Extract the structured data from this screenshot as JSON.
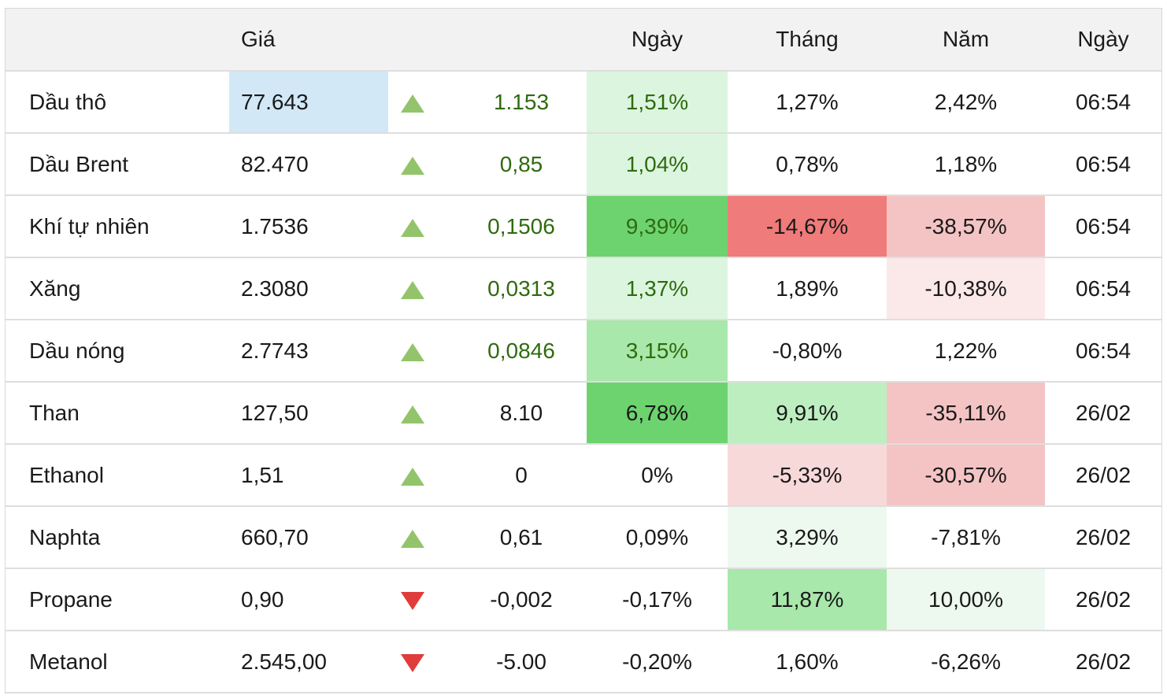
{
  "header": {
    "name": "",
    "price": "Giá",
    "arrow": "",
    "change": "",
    "day": "Ngày",
    "month": "Tháng",
    "year": "Năm",
    "time": "Ngày"
  },
  "colors": {
    "up_arrow": "#93c46b",
    "down_arrow": "#e03c3c",
    "positive_text": "#2f6b0f",
    "price_highlight": "#d3e8f7"
  },
  "rows": [
    {
      "name": "Dầu thô",
      "price": "77.643",
      "direction": "up",
      "change": "1.153",
      "day": "1,51%",
      "month": "1,27%",
      "year": "2,42%",
      "time": "06:54",
      "price_bg": "#d3e8f7",
      "change_positive": true,
      "day_bg": "#dcf5df",
      "month_bg": "",
      "year_bg": ""
    },
    {
      "name": "Dầu Brent",
      "price": "82.470",
      "direction": "up",
      "change": "0,85",
      "day": "1,04%",
      "month": "0,78%",
      "year": "1,18%",
      "time": "06:54",
      "price_bg": "",
      "change_positive": true,
      "day_bg": "#dcf5df",
      "month_bg": "",
      "year_bg": ""
    },
    {
      "name": "Khí tự nhiên",
      "price": "1.7536",
      "direction": "up",
      "change": "0,1506",
      "day": "9,39%",
      "month": "-14,67%",
      "year": "-38,57%",
      "time": "06:54",
      "price_bg": "",
      "change_positive": true,
      "day_bg": "#6dd36e",
      "month_bg": "#ef7b7a",
      "year_bg": "#f4c4c4"
    },
    {
      "name": "Xăng",
      "price": "2.3080",
      "direction": "up",
      "change": "0,0313",
      "day": "1,37%",
      "month": "1,89%",
      "year": "-10,38%",
      "time": "06:54",
      "price_bg": "",
      "change_positive": true,
      "day_bg": "#dcf5df",
      "month_bg": "",
      "year_bg": "#fbe8e8"
    },
    {
      "name": "Dầu nóng",
      "price": "2.7743",
      "direction": "up",
      "change": "0,0846",
      "day": "3,15%",
      "month": "-0,80%",
      "year": "1,22%",
      "time": "06:54",
      "price_bg": "",
      "change_positive": true,
      "day_bg": "#a8e8aa",
      "month_bg": "",
      "year_bg": ""
    },
    {
      "name": "Than",
      "price": "127,50",
      "direction": "up",
      "change": "8.10",
      "day": "6,78%",
      "month": "9,91%",
      "year": "-35,11%",
      "time": "26/02",
      "price_bg": "",
      "change_positive": false,
      "day_bg": "#6dd36e",
      "month_bg": "#bdeec0",
      "year_bg": "#f4c4c4"
    },
    {
      "name": "Ethanol",
      "price": "1,51",
      "direction": "up",
      "change": "0",
      "day": "0%",
      "month": "-5,33%",
      "year": "-30,57%",
      "time": "26/02",
      "price_bg": "",
      "change_positive": false,
      "day_bg": "",
      "month_bg": "#f8d9d9",
      "year_bg": "#f4c4c4"
    },
    {
      "name": "Naphta",
      "price": "660,70",
      "direction": "up",
      "change": "0,61",
      "day": "0,09%",
      "month": "3,29%",
      "year": "-7,81%",
      "time": "26/02",
      "price_bg": "",
      "change_positive": false,
      "day_bg": "",
      "month_bg": "#edf9ee",
      "year_bg": ""
    },
    {
      "name": "Propane",
      "price": "0,90",
      "direction": "down",
      "change": "-0,002",
      "day": "-0,17%",
      "month": "11,87%",
      "year": "10,00%",
      "time": "26/02",
      "price_bg": "",
      "change_positive": false,
      "day_bg": "",
      "month_bg": "#a8e8aa",
      "year_bg": "#edf9ee"
    },
    {
      "name": "Metanol",
      "price": "2.545,00",
      "direction": "down",
      "change": "-5.00",
      "day": "-0,20%",
      "month": "1,60%",
      "year": "-6,26%",
      "time": "26/02",
      "price_bg": "",
      "change_positive": false,
      "day_bg": "",
      "month_bg": "",
      "year_bg": ""
    }
  ]
}
